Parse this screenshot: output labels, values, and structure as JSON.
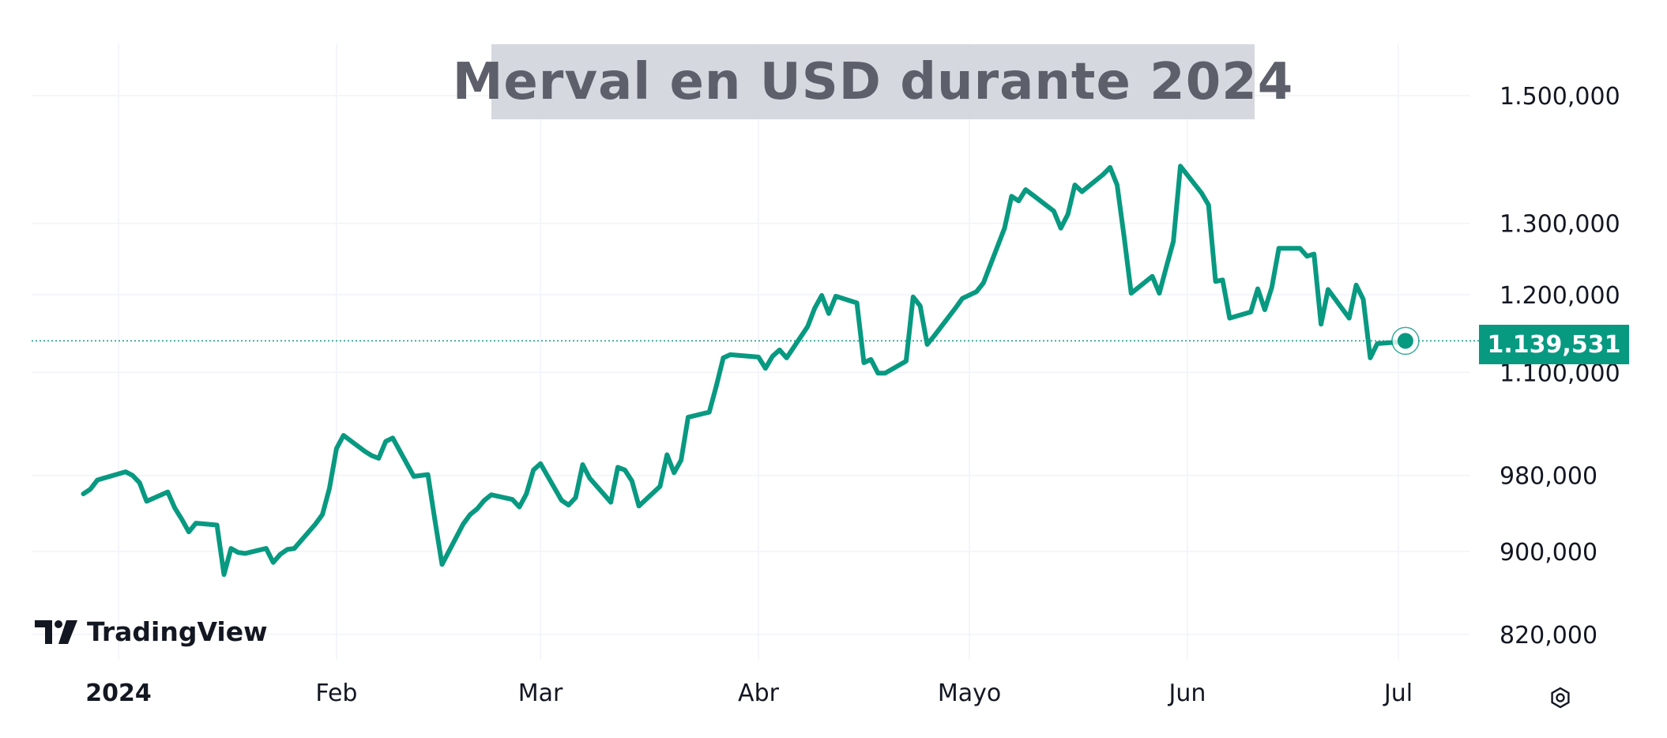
{
  "chart_title": "Merval en USD durante 2024",
  "brand": "TradingView",
  "icons": {
    "logo": "tradingview-logo-icon",
    "settings": "settings-gear-icon"
  },
  "colors": {
    "line": "#089981",
    "tag": "#089981",
    "title_bg": "#d6d8df",
    "title_text": "#5d606b",
    "axis_text": "#131722"
  },
  "chart_data": {
    "type": "line",
    "title": "Merval en USD durante 2024",
    "scale": "log",
    "grid": true,
    "y_ticks": [
      {
        "value": 820000,
        "label": "820,000"
      },
      {
        "value": 900000,
        "label": "900,000"
      },
      {
        "value": 980000,
        "label": "980,000"
      },
      {
        "value": 1100000,
        "label": "1.100,000"
      },
      {
        "value": 1200000,
        "label": "1.200,000"
      },
      {
        "value": 1300000,
        "label": "1.300,000"
      },
      {
        "value": 1500000,
        "label": "1.500,000"
      }
    ],
    "x_ticks": [
      {
        "date": "2024-01-01",
        "label": "2024",
        "bold": true
      },
      {
        "date": "2024-02-01",
        "label": "Feb"
      },
      {
        "date": "2024-03-01",
        "label": "Mar"
      },
      {
        "date": "2024-04-01",
        "label": "Abr"
      },
      {
        "date": "2024-05-01",
        "label": "Mayo"
      },
      {
        "date": "2024-06-01",
        "label": "Jun"
      },
      {
        "date": "2024-07-01",
        "label": "Jul"
      }
    ],
    "last_value": 1139531,
    "last_value_label": "1.139,531",
    "series": [
      {
        "points": [
          [
            "2023-12-27",
            960000
          ],
          [
            "2023-12-28",
            965000
          ],
          [
            "2023-12-29",
            975000
          ],
          [
            "2024-01-02",
            984000
          ],
          [
            "2024-01-03",
            980000
          ],
          [
            "2024-01-04",
            972000
          ],
          [
            "2024-01-05",
            952000
          ],
          [
            "2024-01-08",
            962000
          ],
          [
            "2024-01-09",
            945000
          ],
          [
            "2024-01-10",
            933000
          ],
          [
            "2024-01-11",
            920000
          ],
          [
            "2024-01-12",
            929000
          ],
          [
            "2024-01-15",
            927000
          ],
          [
            "2024-01-16",
            877000
          ],
          [
            "2024-01-17",
            903000
          ],
          [
            "2024-01-18",
            899000
          ],
          [
            "2024-01-19",
            898000
          ],
          [
            "2024-01-22",
            903000
          ],
          [
            "2024-01-23",
            889000
          ],
          [
            "2024-01-24",
            897000
          ],
          [
            "2024-01-25",
            902000
          ],
          [
            "2024-01-26",
            903000
          ],
          [
            "2024-01-29",
            928000
          ],
          [
            "2024-01-30",
            938000
          ],
          [
            "2024-01-31",
            966000
          ],
          [
            "2024-02-01",
            1010000
          ],
          [
            "2024-02-02",
            1025000
          ],
          [
            "2024-02-05",
            1007000
          ],
          [
            "2024-02-06",
            1002000
          ],
          [
            "2024-02-07",
            999000
          ],
          [
            "2024-02-08",
            1018000
          ],
          [
            "2024-02-09",
            1022000
          ],
          [
            "2024-02-12",
            979000
          ],
          [
            "2024-02-14",
            981000
          ],
          [
            "2024-02-15",
            932000
          ],
          [
            "2024-02-16",
            887000
          ],
          [
            "2024-02-19",
            928000
          ],
          [
            "2024-02-20",
            938000
          ],
          [
            "2024-02-21",
            944000
          ],
          [
            "2024-02-22",
            953000
          ],
          [
            "2024-02-23",
            959000
          ],
          [
            "2024-02-26",
            954000
          ],
          [
            "2024-02-27",
            946000
          ],
          [
            "2024-02-28",
            960000
          ],
          [
            "2024-02-29",
            986000
          ],
          [
            "2024-03-01",
            993000
          ],
          [
            "2024-03-04",
            953000
          ],
          [
            "2024-03-05",
            948000
          ],
          [
            "2024-03-06",
            956000
          ],
          [
            "2024-03-07",
            992000
          ],
          [
            "2024-03-08",
            977000
          ],
          [
            "2024-03-11",
            951000
          ],
          [
            "2024-03-12",
            989000
          ],
          [
            "2024-03-13",
            986000
          ],
          [
            "2024-03-14",
            974000
          ],
          [
            "2024-03-15",
            947000
          ],
          [
            "2024-03-18",
            968000
          ],
          [
            "2024-03-19",
            1003000
          ],
          [
            "2024-03-20",
            983000
          ],
          [
            "2024-03-21",
            997000
          ],
          [
            "2024-03-22",
            1046000
          ],
          [
            "2024-03-25",
            1052000
          ],
          [
            "2024-03-26",
            1083000
          ],
          [
            "2024-03-27",
            1118000
          ],
          [
            "2024-03-28",
            1122000
          ],
          [
            "2024-04-01",
            1119000
          ],
          [
            "2024-04-02",
            1105000
          ],
          [
            "2024-04-03",
            1120000
          ],
          [
            "2024-04-04",
            1128000
          ],
          [
            "2024-04-05",
            1118000
          ],
          [
            "2024-04-08",
            1158000
          ],
          [
            "2024-04-09",
            1182000
          ],
          [
            "2024-04-10",
            1199000
          ],
          [
            "2024-04-11",
            1175000
          ],
          [
            "2024-04-12",
            1198000
          ],
          [
            "2024-04-15",
            1189000
          ],
          [
            "2024-04-16",
            1112000
          ],
          [
            "2024-04-17",
            1116000
          ],
          [
            "2024-04-18",
            1099000
          ],
          [
            "2024-04-19",
            1099000
          ],
          [
            "2024-04-22",
            1114000
          ],
          [
            "2024-04-23",
            1197000
          ],
          [
            "2024-04-24",
            1185000
          ],
          [
            "2024-04-25",
            1135000
          ],
          [
            "2024-04-26",
            1146000
          ],
          [
            "2024-04-29",
            1182000
          ],
          [
            "2024-04-30",
            1195000
          ],
          [
            "2024-05-02",
            1204000
          ],
          [
            "2024-05-03",
            1216000
          ],
          [
            "2024-05-06",
            1293000
          ],
          [
            "2024-05-07",
            1340000
          ],
          [
            "2024-05-08",
            1333000
          ],
          [
            "2024-05-09",
            1350000
          ],
          [
            "2024-05-10",
            1342000
          ],
          [
            "2024-05-13",
            1318000
          ],
          [
            "2024-05-14",
            1293000
          ],
          [
            "2024-05-15",
            1313000
          ],
          [
            "2024-05-16",
            1357000
          ],
          [
            "2024-05-17",
            1347000
          ],
          [
            "2024-05-20",
            1373000
          ],
          [
            "2024-05-21",
            1384000
          ],
          [
            "2024-05-22",
            1357000
          ],
          [
            "2024-05-23",
            1280000
          ],
          [
            "2024-05-24",
            1202000
          ],
          [
            "2024-05-27",
            1225000
          ],
          [
            "2024-05-28",
            1202000
          ],
          [
            "2024-05-29",
            1238000
          ],
          [
            "2024-05-30",
            1274000
          ],
          [
            "2024-05-31",
            1386000
          ],
          [
            "2024-06-03",
            1345000
          ],
          [
            "2024-06-04",
            1327000
          ],
          [
            "2024-06-05",
            1218000
          ],
          [
            "2024-06-06",
            1220000
          ],
          [
            "2024-06-07",
            1169000
          ],
          [
            "2024-06-10",
            1177000
          ],
          [
            "2024-06-11",
            1208000
          ],
          [
            "2024-06-12",
            1180000
          ],
          [
            "2024-06-13",
            1210000
          ],
          [
            "2024-06-14",
            1264000
          ],
          [
            "2024-06-17",
            1264000
          ],
          [
            "2024-06-18",
            1253000
          ],
          [
            "2024-06-19",
            1256000
          ],
          [
            "2024-06-20",
            1161000
          ],
          [
            "2024-06-21",
            1207000
          ],
          [
            "2024-06-24",
            1169000
          ],
          [
            "2024-06-25",
            1213000
          ],
          [
            "2024-06-26",
            1194000
          ],
          [
            "2024-06-27",
            1118000
          ],
          [
            "2024-06-28",
            1136000
          ],
          [
            "2024-07-01",
            1138000
          ],
          [
            "2024-07-02",
            1139531
          ]
        ]
      }
    ]
  }
}
